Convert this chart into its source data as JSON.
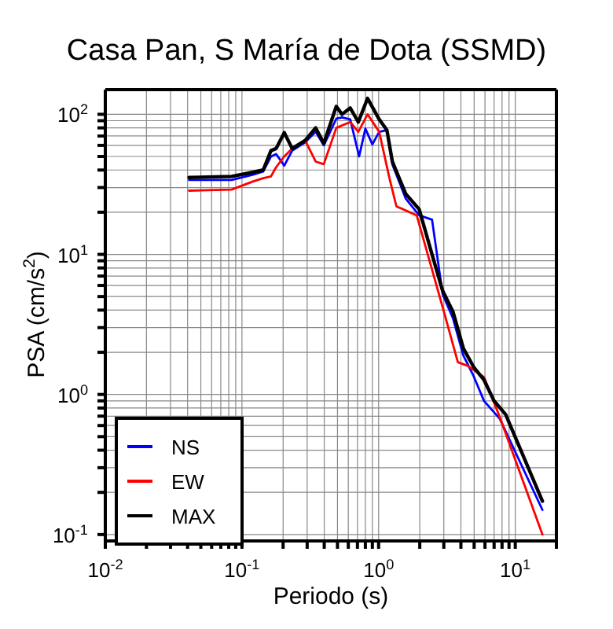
{
  "chart_data": {
    "type": "line",
    "title": "Casa Pan, S María de Dota (SSMD)",
    "xlabel": "Periodo (s)",
    "ylabel": "PSA (cm/s$^{2}$)",
    "log": "xy",
    "grid": true,
    "legend": "bottom left",
    "marker": "none",
    "line_style": "solid",
    "xlim": [
      0.01,
      20
    ],
    "ylim": [
      0.09,
      150
    ],
    "xticks": [
      {
        "value": 0.01,
        "label": "10$^{-2}$"
      },
      {
        "value": 0.02,
        "label": null
      },
      {
        "value": 0.03,
        "label": null
      },
      {
        "value": 0.04,
        "label": null
      },
      {
        "value": 0.05,
        "label": null
      },
      {
        "value": 0.06,
        "label": null
      },
      {
        "value": 0.07,
        "label": null
      },
      {
        "value": 0.08,
        "label": null
      },
      {
        "value": 0.09,
        "label": null
      },
      {
        "value": 0.1,
        "label": "10$^{-1}$"
      },
      {
        "value": 0.2,
        "label": null
      },
      {
        "value": 0.3,
        "label": null
      },
      {
        "value": 0.4,
        "label": null
      },
      {
        "value": 0.5,
        "label": null
      },
      {
        "value": 0.6,
        "label": null
      },
      {
        "value": 0.7,
        "label": null
      },
      {
        "value": 0.8,
        "label": null
      },
      {
        "value": 0.9,
        "label": null
      },
      {
        "value": 1,
        "label": "10$^{0}$"
      },
      {
        "value": 2,
        "label": null
      },
      {
        "value": 3,
        "label": null
      },
      {
        "value": 4,
        "label": null
      },
      {
        "value": 5,
        "label": null
      },
      {
        "value": 6,
        "label": null
      },
      {
        "value": 7,
        "label": null
      },
      {
        "value": 8,
        "label": null
      },
      {
        "value": 9,
        "label": null
      },
      {
        "value": 10,
        "label": "10$^{1}$"
      },
      {
        "value": 20,
        "label": null
      }
    ],
    "yticks": [
      {
        "value": 0.1,
        "label": "10$^{-1}$"
      },
      {
        "value": 0.2,
        "label": null
      },
      {
        "value": 0.3,
        "label": null
      },
      {
        "value": 0.4,
        "label": null
      },
      {
        "value": 0.5,
        "label": null
      },
      {
        "value": 0.6,
        "label": null
      },
      {
        "value": 0.7,
        "label": null
      },
      {
        "value": 0.8,
        "label": null
      },
      {
        "value": 0.9,
        "label": null
      },
      {
        "value": 1,
        "label": "10$^{0}$"
      },
      {
        "value": 2,
        "label": null
      },
      {
        "value": 3,
        "label": null
      },
      {
        "value": 4,
        "label": null
      },
      {
        "value": 5,
        "label": null
      },
      {
        "value": 6,
        "label": null
      },
      {
        "value": 7,
        "label": null
      },
      {
        "value": 8,
        "label": null
      },
      {
        "value": 9,
        "label": null
      },
      {
        "value": 10,
        "label": "10$^{1}$"
      },
      {
        "value": 20,
        "label": null
      },
      {
        "value": 30,
        "label": null
      },
      {
        "value": 40,
        "label": null
      },
      {
        "value": 50,
        "label": null
      },
      {
        "value": 60,
        "label": null
      },
      {
        "value": 70,
        "label": null
      },
      {
        "value": 80,
        "label": null
      },
      {
        "value": 90,
        "label": null
      },
      {
        "value": 100,
        "label": "10$^{2}$"
      }
    ],
    "series": [
      {
        "name": "NS",
        "color": "#0000ff",
        "x": [
          0.041,
          0.084,
          0.119,
          0.143,
          0.163,
          0.178,
          0.204,
          0.233,
          0.29,
          0.346,
          0.397,
          0.49,
          0.54,
          0.62,
          0.72,
          0.8,
          0.9,
          1.01,
          1.15,
          1.26,
          1.58,
          1.98,
          2.46,
          2.94,
          3.5,
          4.17,
          4.96,
          5.9,
          7.7,
          15.8
        ],
        "values": [
          34,
          34,
          37,
          39,
          50,
          52,
          43,
          55,
          63,
          75,
          60,
          93,
          95,
          92,
          50,
          79,
          61,
          75,
          77,
          44,
          25,
          19,
          17.7,
          5.2,
          3.5,
          1.9,
          1.35,
          0.9,
          0.67,
          0.15
        ]
      },
      {
        "name": "EW",
        "color": "#ff0000",
        "x": [
          0.041,
          0.084,
          0.119,
          0.143,
          0.163,
          0.178,
          0.204,
          0.233,
          0.29,
          0.346,
          0.397,
          0.49,
          0.62,
          0.71,
          0.83,
          1.01,
          1.2,
          1.35,
          1.9,
          2.94,
          3.8,
          4.5,
          5.9,
          7.7,
          15.8
        ],
        "values": [
          28.5,
          29,
          33,
          35,
          36,
          42,
          50,
          57,
          65,
          46,
          44,
          80,
          88,
          75,
          100,
          75,
          35,
          22,
          19,
          4.2,
          1.7,
          1.6,
          1.33,
          0.69,
          0.1
        ]
      },
      {
        "name": "MAX",
        "color": "#000000",
        "x": [
          0.041,
          0.084,
          0.119,
          0.143,
          0.163,
          0.178,
          0.204,
          0.233,
          0.29,
          0.346,
          0.397,
          0.49,
          0.54,
          0.62,
          0.71,
          0.83,
          1.01,
          1.15,
          1.26,
          1.58,
          1.98,
          2.46,
          2.94,
          3.5,
          4.17,
          4.96,
          5.9,
          7.0,
          8.5,
          15.8
        ],
        "values": [
          35.4,
          36,
          38.5,
          40,
          55,
          57,
          74,
          57,
          65,
          80,
          62,
          114,
          100,
          111,
          88,
          130,
          92,
          77,
          46,
          27,
          21,
          10,
          5.5,
          3.9,
          2.13,
          1.57,
          1.27,
          0.9,
          0.72,
          0.173
        ]
      }
    ]
  }
}
